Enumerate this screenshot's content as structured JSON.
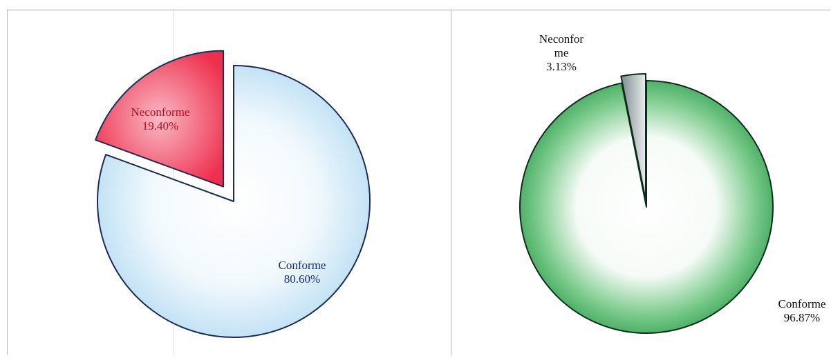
{
  "chart_data": [
    {
      "type": "pie",
      "title": "",
      "slices": [
        {
          "label": "Neconforme",
          "value": 19.4,
          "value_text": "19.40%",
          "color": "#ee2f4d",
          "highlight": "#f9b9c4",
          "exploded": true,
          "label_color": "#b01025"
        },
        {
          "label": "Conforme",
          "value": 80.6,
          "value_text": "80.60%",
          "color": "#b8ddf3",
          "highlight": "#ffffff",
          "exploded": false,
          "label_color": "#1a2b7a"
        }
      ]
    },
    {
      "type": "pie",
      "title": "",
      "slices": [
        {
          "label": "Neconfor\nme",
          "value": 3.13,
          "value_text": "3.13%",
          "color": "#9aa3a6",
          "highlight": "#ffffff",
          "exploded": true,
          "label_color": "#111111"
        },
        {
          "label": "Conforme",
          "value": 96.87,
          "value_text": "96.87%",
          "color": "#2f9e4e",
          "highlight": "#ffffff",
          "exploded": false,
          "label_color": "#111111"
        }
      ]
    }
  ]
}
